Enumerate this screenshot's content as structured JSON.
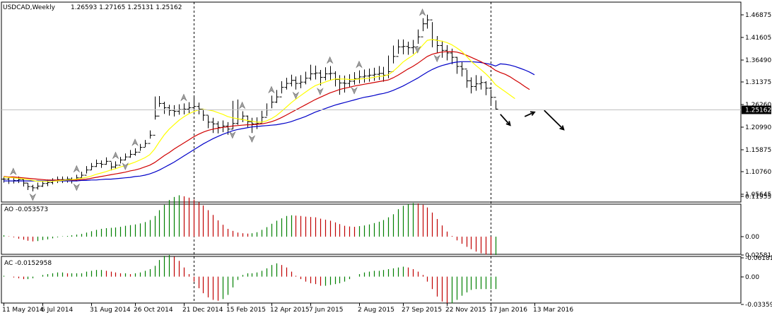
{
  "header": {
    "symbol_title": "USDCAD,Weekly",
    "ohlc": "1.26593 1.27165 1.25131 1.25162"
  },
  "panels": {
    "ao_label": "AO -0.053573",
    "ac_label": "AC -0.0152958"
  },
  "colors": {
    "background": "#ffffff",
    "bar": "#000000",
    "ma_fast": "#ffff00",
    "ma_mid": "#d00000",
    "ma_slow": "#0000c8",
    "histogram_up": "#008000",
    "histogram_down": "#c00000",
    "fractal": "#a0a0a0",
    "current_price_bg": "#000000",
    "current_price_fg": "#ffffff"
  },
  "chart_data": [
    {
      "type": "ohlc",
      "title": "USDCAD,Weekly",
      "y_tick_labels": [
        "1.46875",
        "1.41605",
        "1.36490",
        "1.31375",
        "1.26260",
        "1.20990",
        "1.15875",
        "1.10760",
        "1.05645"
      ],
      "current_price": "1.25162",
      "x_tick_labels": [
        "11 May 2014",
        "6 Jul 2014",
        "31 Aug 2014",
        "26 Oct 2014",
        "21 Dec 2014",
        "15 Feb 2015",
        "12 Apr 2015",
        "7 Jun 2015",
        "2 Aug 2015",
        "27 Sep 2015",
        "22 Nov 2015",
        "17 Jan 2016",
        "13 Mar 2016"
      ],
      "ylim": [
        1.04,
        1.48
      ],
      "close": [
        1.091,
        1.087,
        1.088,
        1.09,
        1.082,
        1.074,
        1.071,
        1.075,
        1.081,
        1.083,
        1.087,
        1.09,
        1.09,
        1.091,
        1.089,
        1.094,
        1.1,
        1.112,
        1.12,
        1.127,
        1.125,
        1.132,
        1.119,
        1.123,
        1.135,
        1.142,
        1.148,
        1.153,
        1.164,
        1.173,
        1.192,
        1.236,
        1.265,
        1.255,
        1.249,
        1.247,
        1.251,
        1.252,
        1.255,
        1.258,
        1.252,
        1.238,
        1.222,
        1.218,
        1.21,
        1.213,
        1.206,
        1.219,
        1.229,
        1.236,
        1.223,
        1.218,
        1.219,
        1.233,
        1.25,
        1.268,
        1.28,
        1.302,
        1.311,
        1.318,
        1.311,
        1.314,
        1.323,
        1.333,
        1.335,
        1.325,
        1.333,
        1.334,
        1.32,
        1.312,
        1.311,
        1.316,
        1.322,
        1.326,
        1.328,
        1.33,
        1.332,
        1.334,
        1.33,
        1.338,
        1.373,
        1.395,
        1.396,
        1.393,
        1.395,
        1.418,
        1.448,
        1.457,
        1.411,
        1.398,
        1.387,
        1.381,
        1.371,
        1.35,
        1.344,
        1.317,
        1.304,
        1.31,
        1.313,
        1.3,
        1.279,
        1.252
      ],
      "high": [
        1.097,
        1.095,
        1.095,
        1.097,
        1.09,
        1.082,
        1.078,
        1.083,
        1.087,
        1.09,
        1.093,
        1.097,
        1.097,
        1.097,
        1.095,
        1.101,
        1.108,
        1.121,
        1.128,
        1.136,
        1.134,
        1.141,
        1.13,
        1.132,
        1.142,
        1.15,
        1.158,
        1.162,
        1.172,
        1.181,
        1.203,
        1.281,
        1.282,
        1.269,
        1.262,
        1.261,
        1.263,
        1.265,
        1.268,
        1.282,
        1.267,
        1.252,
        1.237,
        1.232,
        1.224,
        1.226,
        1.222,
        1.271,
        1.274,
        1.247,
        1.237,
        1.232,
        1.233,
        1.248,
        1.265,
        1.283,
        1.296,
        1.316,
        1.324,
        1.331,
        1.327,
        1.33,
        1.338,
        1.354,
        1.352,
        1.342,
        1.348,
        1.351,
        1.339,
        1.33,
        1.329,
        1.332,
        1.337,
        1.341,
        1.343,
        1.345,
        1.347,
        1.351,
        1.349,
        1.375,
        1.398,
        1.412,
        1.412,
        1.407,
        1.411,
        1.435,
        1.461,
        1.469,
        1.452,
        1.42,
        1.409,
        1.399,
        1.391,
        1.372,
        1.36,
        1.342,
        1.325,
        1.33,
        1.328,
        1.316,
        1.297,
        1.272
      ],
      "low": [
        1.083,
        1.08,
        1.081,
        1.082,
        1.074,
        1.066,
        1.063,
        1.067,
        1.073,
        1.075,
        1.079,
        1.082,
        1.082,
        1.083,
        1.081,
        1.086,
        1.092,
        1.104,
        1.112,
        1.119,
        1.117,
        1.124,
        1.111,
        1.115,
        1.127,
        1.134,
        1.14,
        1.145,
        1.156,
        1.165,
        1.184,
        1.228,
        1.257,
        1.241,
        1.237,
        1.235,
        1.239,
        1.24,
        1.243,
        1.246,
        1.24,
        1.225,
        1.208,
        1.197,
        1.196,
        1.199,
        1.193,
        1.206,
        1.216,
        1.222,
        1.21,
        1.197,
        1.206,
        1.22,
        1.236,
        1.254,
        1.266,
        1.288,
        1.297,
        1.304,
        1.297,
        1.3,
        1.309,
        1.318,
        1.32,
        1.306,
        1.318,
        1.318,
        1.304,
        1.285,
        1.29,
        1.302,
        1.308,
        1.311,
        1.313,
        1.315,
        1.317,
        1.319,
        1.315,
        1.323,
        1.357,
        1.379,
        1.378,
        1.377,
        1.379,
        1.402,
        1.431,
        1.437,
        1.394,
        1.382,
        1.37,
        1.364,
        1.355,
        1.333,
        1.327,
        1.301,
        1.288,
        1.294,
        1.297,
        1.284,
        1.263,
        1.251
      ],
      "ma_fast": [
        1.096,
        1.095,
        1.094,
        1.093,
        1.092,
        1.09,
        1.088,
        1.086,
        1.086,
        1.086,
        1.086,
        1.087,
        1.088,
        1.089,
        1.09,
        1.091,
        1.093,
        1.095,
        1.098,
        1.102,
        1.105,
        1.108,
        1.112,
        1.115,
        1.119,
        1.122,
        1.126,
        1.13,
        1.135,
        1.14,
        1.147,
        1.16,
        1.177,
        1.193,
        1.206,
        1.216,
        1.226,
        1.234,
        1.241,
        1.246,
        1.25,
        1.251,
        1.25,
        1.248,
        1.244,
        1.24,
        1.235,
        1.232,
        1.23,
        1.228,
        1.226,
        1.224,
        1.222,
        1.222,
        1.225,
        1.23,
        1.237,
        1.246,
        1.256,
        1.266,
        1.275,
        1.283,
        1.291,
        1.299,
        1.306,
        1.31,
        1.314,
        1.318,
        1.321,
        1.321,
        1.321,
        1.32,
        1.32,
        1.321,
        1.322,
        1.323,
        1.325,
        1.327,
        1.328,
        1.331,
        1.339,
        1.349,
        1.36,
        1.368,
        1.375,
        1.385,
        1.398,
        1.41,
        1.412,
        1.41,
        1.408,
        1.405,
        1.4,
        1.393,
        1.385,
        1.374,
        1.362,
        1.352,
        1.343,
        1.333,
        1.322,
        1.308
      ],
      "ma_mid": [
        1.097,
        1.096,
        1.096,
        1.095,
        1.094,
        1.093,
        1.092,
        1.091,
        1.09,
        1.089,
        1.089,
        1.089,
        1.089,
        1.089,
        1.089,
        1.089,
        1.09,
        1.091,
        1.093,
        1.095,
        1.097,
        1.099,
        1.101,
        1.103,
        1.105,
        1.107,
        1.11,
        1.112,
        1.115,
        1.119,
        1.123,
        1.129,
        1.137,
        1.145,
        1.152,
        1.16,
        1.167,
        1.174,
        1.181,
        1.188,
        1.194,
        1.199,
        1.203,
        1.206,
        1.208,
        1.21,
        1.211,
        1.213,
        1.214,
        1.215,
        1.216,
        1.216,
        1.217,
        1.218,
        1.22,
        1.223,
        1.227,
        1.232,
        1.238,
        1.244,
        1.25,
        1.256,
        1.262,
        1.268,
        1.274,
        1.279,
        1.284,
        1.289,
        1.293,
        1.297,
        1.3,
        1.302,
        1.305,
        1.307,
        1.309,
        1.311,
        1.313,
        1.315,
        1.317,
        1.319,
        1.324,
        1.33,
        1.337,
        1.344,
        1.35,
        1.357,
        1.365,
        1.373,
        1.378,
        1.381,
        1.383,
        1.384,
        1.384,
        1.383,
        1.38,
        1.376,
        1.371,
        1.366,
        1.361,
        1.355,
        1.349,
        1.341
      ],
      "ma_slow": [
        1.087,
        1.087,
        1.087,
        1.087,
        1.087,
        1.087,
        1.087,
        1.087,
        1.087,
        1.087,
        1.087,
        1.087,
        1.087,
        1.087,
        1.087,
        1.087,
        1.088,
        1.088,
        1.089,
        1.089,
        1.09,
        1.091,
        1.091,
        1.092,
        1.093,
        1.094,
        1.095,
        1.097,
        1.098,
        1.1,
        1.103,
        1.107,
        1.112,
        1.118,
        1.124,
        1.13,
        1.137,
        1.144,
        1.151,
        1.158,
        1.165,
        1.172,
        1.178,
        1.184,
        1.189,
        1.194,
        1.198,
        1.202,
        1.205,
        1.207,
        1.209,
        1.211,
        1.212,
        1.213,
        1.214,
        1.215,
        1.216,
        1.218,
        1.22,
        1.223,
        1.227,
        1.231,
        1.235,
        1.24,
        1.245,
        1.249,
        1.253,
        1.257,
        1.261,
        1.264,
        1.267,
        1.27,
        1.273,
        1.276,
        1.279,
        1.281,
        1.283,
        1.286,
        1.288,
        1.291,
        1.295,
        1.3,
        1.305,
        1.311,
        1.317,
        1.323,
        1.33,
        1.337,
        1.343,
        1.348,
        1.352,
        1.355,
        1.358,
        1.36,
        1.361,
        1.361,
        1.361,
        1.36,
        1.359,
        1.357,
        1.355,
        1.351
      ],
      "ma_extended": {
        "ma_fast": [
          1.3,
          1.292,
          1.284,
          1.276
        ],
        "ma_mid": [
          1.336,
          1.332,
          1.326,
          1.319,
          1.312,
          1.304,
          1.297
        ],
        "ma_slow": [
          1.356,
          1.355,
          1.353,
          1.35,
          1.346,
          1.342,
          1.337,
          1.331
        ]
      },
      "fractal_up_bars": [
        2,
        15,
        23,
        27,
        37,
        49,
        55,
        67,
        73,
        86
      ],
      "fractal_down_bars": [
        6,
        15,
        25,
        47,
        51,
        60,
        65,
        72,
        85,
        89
      ],
      "forecast_arrows": [
        {
          "from": [
            102,
            1.24
          ],
          "to": [
            104,
            1.215
          ],
          "direction": "down"
        },
        {
          "from": [
            107,
            1.235
          ],
          "to": [
            109,
            1.245
          ],
          "direction": "up"
        },
        {
          "from": [
            111,
            1.249
          ],
          "to": [
            115,
            1.205
          ],
          "direction": "down"
        }
      ]
    },
    {
      "type": "bar",
      "title": "AO -0.053573",
      "y_tick_labels": [
        "0.119559",
        "0.00",
        "-0.061817"
      ],
      "ylim": [
        -0.075,
        0.133
      ],
      "values": [
        0.004,
        0.001,
        -0.002,
        -0.006,
        -0.009,
        -0.012,
        -0.014,
        -0.013,
        -0.01,
        -0.008,
        -0.005,
        -0.002,
        0.001,
        0.002,
        0.004,
        0.006,
        0.008,
        0.012,
        0.016,
        0.02,
        0.023,
        0.025,
        0.026,
        0.027,
        0.029,
        0.032,
        0.034,
        0.036,
        0.039,
        0.043,
        0.049,
        0.061,
        0.078,
        0.094,
        0.108,
        0.117,
        0.122,
        0.119,
        0.115,
        0.109,
        0.101,
        0.092,
        0.078,
        0.064,
        0.048,
        0.035,
        0.023,
        0.017,
        0.012,
        0.01,
        0.009,
        0.01,
        0.013,
        0.02,
        0.028,
        0.038,
        0.047,
        0.054,
        0.061,
        0.063,
        0.062,
        0.061,
        0.059,
        0.058,
        0.057,
        0.053,
        0.05,
        0.047,
        0.042,
        0.037,
        0.032,
        0.03,
        0.029,
        0.031,
        0.033,
        0.036,
        0.04,
        0.044,
        0.049,
        0.057,
        0.066,
        0.081,
        0.091,
        0.096,
        0.099,
        0.098,
        0.094,
        0.086,
        0.071,
        0.052,
        0.033,
        0.015,
        0.002,
        -0.011,
        -0.021,
        -0.03,
        -0.037,
        -0.044,
        -0.049,
        -0.053,
        -0.054,
        -0.054
      ]
    },
    {
      "type": "bar",
      "title": "AC -0.0152958",
      "y_tick_labels": [
        "0.025814",
        "0.00",
        "-0.033595"
      ],
      "ylim": [
        -0.037,
        0.029
      ],
      "values": [
        0.001,
        0.0,
        -0.001,
        -0.002,
        -0.003,
        -0.003,
        -0.002,
        0.0,
        0.002,
        0.003,
        0.004,
        0.005,
        0.005,
        0.004,
        0.004,
        0.004,
        0.004,
        0.006,
        0.007,
        0.008,
        0.008,
        0.007,
        0.006,
        0.005,
        0.004,
        0.004,
        0.003,
        0.004,
        0.005,
        0.007,
        0.009,
        0.013,
        0.02,
        0.025,
        0.026,
        0.024,
        0.019,
        0.011,
        0.003,
        -0.006,
        -0.014,
        -0.02,
        -0.025,
        -0.028,
        -0.029,
        -0.027,
        -0.022,
        -0.013,
        -0.004,
        0.002,
        0.004,
        0.004,
        0.005,
        0.007,
        0.01,
        0.014,
        0.016,
        0.014,
        0.011,
        0.006,
        0.001,
        -0.003,
        -0.006,
        -0.008,
        -0.009,
        -0.011,
        -0.011,
        -0.01,
        -0.009,
        -0.008,
        -0.006,
        -0.003,
        0.0,
        0.003,
        0.005,
        0.006,
        0.007,
        0.007,
        0.008,
        0.009,
        0.01,
        0.011,
        0.012,
        0.011,
        0.009,
        0.006,
        0.002,
        -0.006,
        -0.015,
        -0.024,
        -0.03,
        -0.033,
        -0.032,
        -0.028,
        -0.023,
        -0.019,
        -0.016,
        -0.015,
        -0.015,
        -0.015,
        -0.015,
        -0.015
      ]
    }
  ]
}
